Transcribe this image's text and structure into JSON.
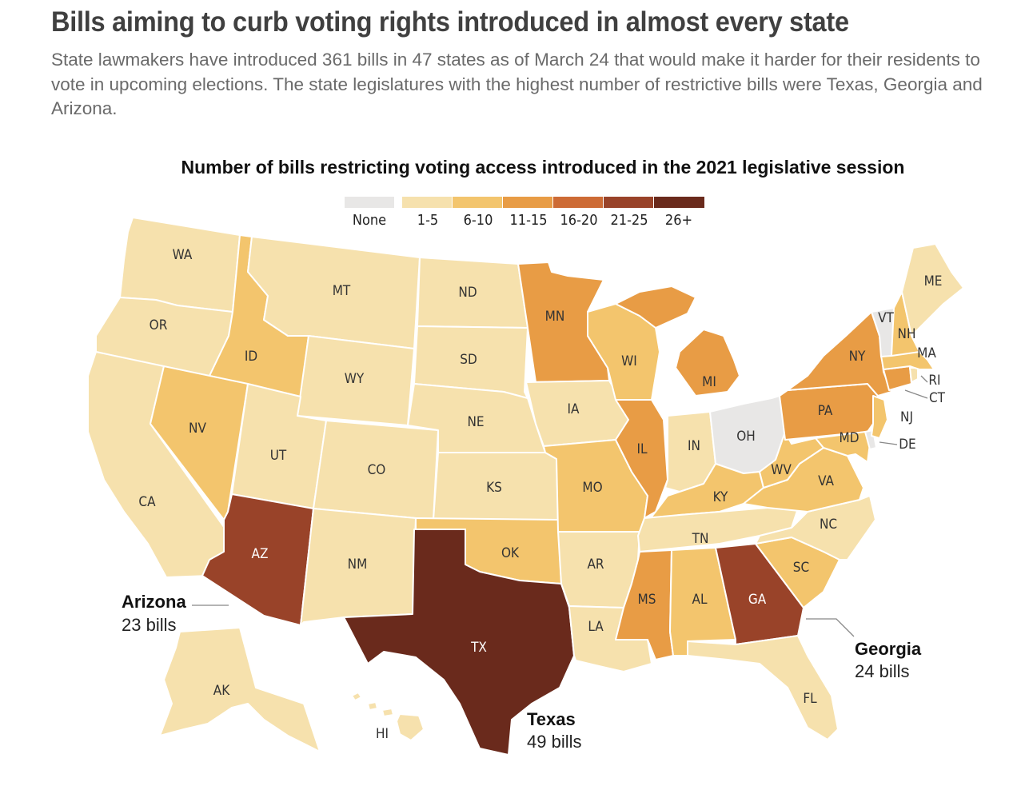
{
  "headline": "Bills aiming to curb voting rights introduced in almost every state",
  "dek": "State lawmakers have introduced 361 bills in 47 states as of March 24 that would make it harder for their residents to vote in upcoming elections. The state legislatures with the highest number of restrictive bills were Texas, Georgia and Arizona.",
  "map_title": "Number of bills restricting voting access introduced in the 2021 legislative session",
  "legend": [
    {
      "label": "None",
      "color": "#e8e7e6"
    },
    {
      "label": "1-5",
      "color": "#f6e1ad"
    },
    {
      "label": "6-10",
      "color": "#f3c56d"
    },
    {
      "label": "11-15",
      "color": "#e89c45"
    },
    {
      "label": "16-20",
      "color": "#cd6b35"
    },
    {
      "label": "21-25",
      "color": "#994329"
    },
    {
      "label": "26+",
      "color": "#6a2a1c"
    }
  ],
  "states": {
    "WA": {
      "label": "WA",
      "class": "1-5"
    },
    "OR": {
      "label": "OR",
      "class": "1-5"
    },
    "CA": {
      "label": "CA",
      "class": "1-5"
    },
    "ID": {
      "label": "ID",
      "class": "6-10"
    },
    "NV": {
      "label": "NV",
      "class": "6-10"
    },
    "MT": {
      "label": "MT",
      "class": "1-5"
    },
    "WY": {
      "label": "WY",
      "class": "1-5"
    },
    "UT": {
      "label": "UT",
      "class": "1-5"
    },
    "AZ": {
      "label": "AZ",
      "class": "21-25"
    },
    "CO": {
      "label": "CO",
      "class": "1-5"
    },
    "NM": {
      "label": "NM",
      "class": "1-5"
    },
    "ND": {
      "label": "ND",
      "class": "1-5"
    },
    "SD": {
      "label": "SD",
      "class": "1-5"
    },
    "NE": {
      "label": "NE",
      "class": "1-5"
    },
    "KS": {
      "label": "KS",
      "class": "1-5"
    },
    "OK": {
      "label": "OK",
      "class": "6-10"
    },
    "TX": {
      "label": "TX",
      "class": "26+"
    },
    "MN": {
      "label": "MN",
      "class": "11-15"
    },
    "IA": {
      "label": "IA",
      "class": "1-5"
    },
    "MO": {
      "label": "MO",
      "class": "6-10"
    },
    "AR": {
      "label": "AR",
      "class": "1-5"
    },
    "LA": {
      "label": "LA",
      "class": "1-5"
    },
    "WI": {
      "label": "WI",
      "class": "6-10"
    },
    "IL": {
      "label": "IL",
      "class": "11-15"
    },
    "MI": {
      "label": "MI",
      "class": "11-15"
    },
    "IN": {
      "label": "IN",
      "class": "1-5"
    },
    "OH": {
      "label": "OH",
      "class": "None"
    },
    "KY": {
      "label": "KY",
      "class": "6-10"
    },
    "TN": {
      "label": "TN",
      "class": "1-5"
    },
    "MS": {
      "label": "MS",
      "class": "11-15"
    },
    "AL": {
      "label": "AL",
      "class": "6-10"
    },
    "GA": {
      "label": "GA",
      "class": "21-25"
    },
    "FL": {
      "label": "FL",
      "class": "1-5"
    },
    "SC": {
      "label": "SC",
      "class": "6-10"
    },
    "NC": {
      "label": "NC",
      "class": "1-5"
    },
    "VA": {
      "label": "VA",
      "class": "6-10"
    },
    "WV": {
      "label": "WV",
      "class": "6-10"
    },
    "PA": {
      "label": "PA",
      "class": "11-15"
    },
    "NY": {
      "label": "NY",
      "class": "11-15"
    },
    "MD": {
      "label": "MD",
      "class": "6-10"
    },
    "DE": {
      "label": "DE",
      "class": "None"
    },
    "NJ": {
      "label": "NJ",
      "class": "6-10"
    },
    "CT": {
      "label": "CT",
      "class": "11-15"
    },
    "RI": {
      "label": "RI",
      "class": "1-5"
    },
    "MA": {
      "label": "MA",
      "class": "6-10"
    },
    "VT": {
      "label": "VT",
      "class": "None"
    },
    "NH": {
      "label": "NH",
      "class": "6-10"
    },
    "ME": {
      "label": "ME",
      "class": "1-5"
    },
    "AK": {
      "label": "AK",
      "class": "1-5"
    },
    "HI": {
      "label": "HI",
      "class": "1-5"
    }
  },
  "callouts": {
    "arizona": {
      "name": "Arizona",
      "count": "23 bills"
    },
    "texas": {
      "name": "Texas",
      "count": "49 bills"
    },
    "georgia": {
      "name": "Georgia",
      "count": "24 bills"
    }
  }
}
